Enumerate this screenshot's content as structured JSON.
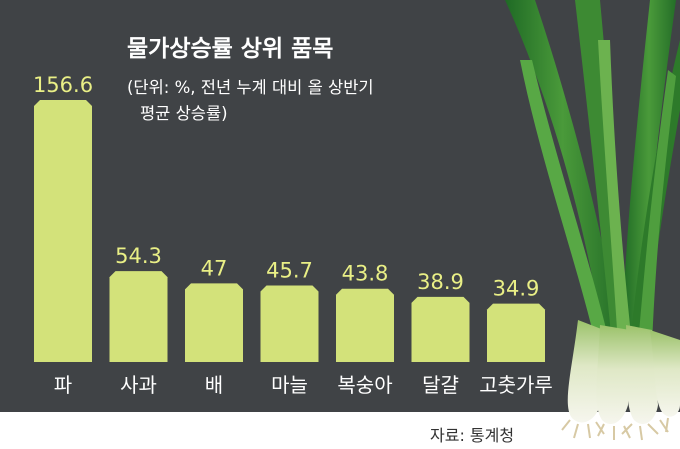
{
  "colors": {
    "background": "#404346",
    "bar": "#d3e27a",
    "value_label": "#e9ef86",
    "text": "#ffffff",
    "source_text": "#333333",
    "leaf_green": "#2f7d2c",
    "stalk_white": "#eef0e2"
  },
  "decoration": {
    "illustration": "green-onion-icon"
  },
  "chart_data": {
    "type": "bar",
    "title": "물가상승률 상위 품목",
    "subtitle_line1": "(단위: %, 전년 누계 대비 올 상반기",
    "subtitle_line2": "평균 상승률)",
    "categories": [
      "파",
      "사과",
      "배",
      "마늘",
      "복숭아",
      "달걀",
      "고춧가루"
    ],
    "values": [
      156.6,
      54.3,
      47,
      45.7,
      43.8,
      38.9,
      34.9
    ],
    "value_labels": [
      "156.6",
      "54.3",
      "47",
      "45.7",
      "43.8",
      "38.9",
      "34.9"
    ],
    "ylim": [
      0,
      160
    ],
    "grid": false,
    "legend": "none",
    "source": "자료: 통계청"
  }
}
